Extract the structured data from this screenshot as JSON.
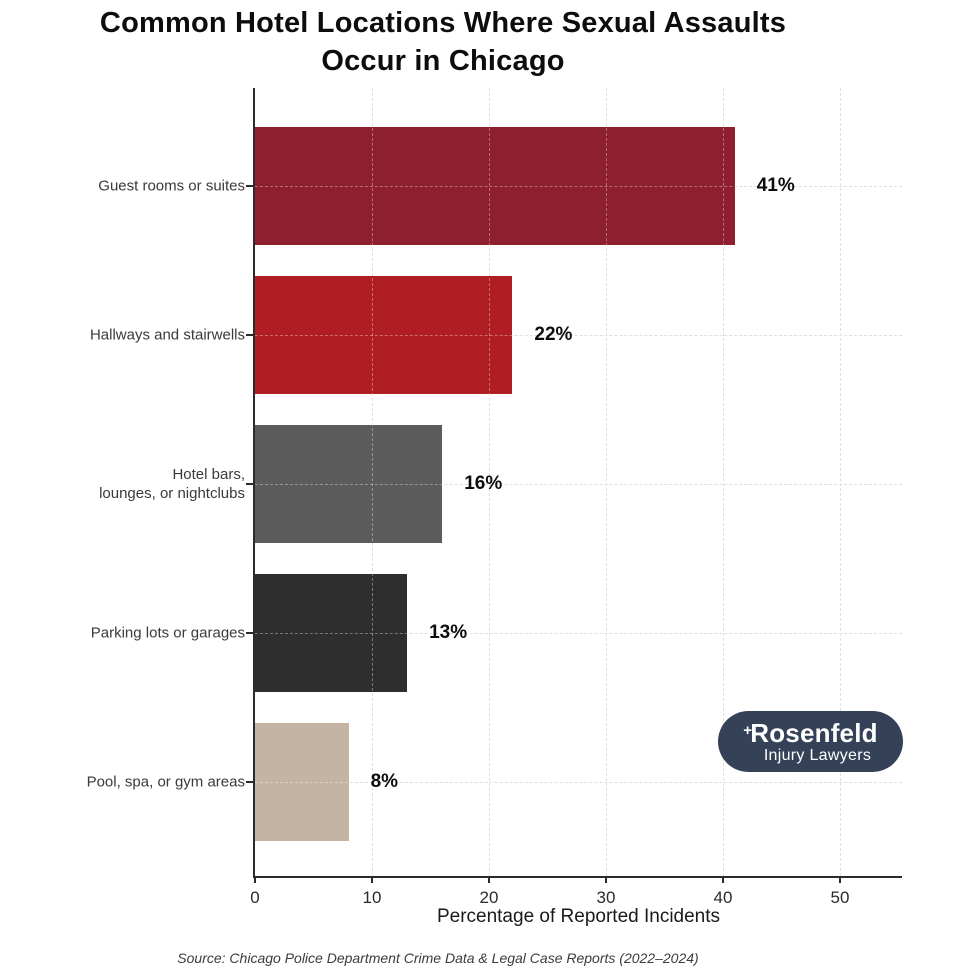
{
  "title": {
    "line1": "Common Hotel Locations Where Sexual Assaults",
    "line2": "Occur in Chicago"
  },
  "chart_data": {
    "type": "bar",
    "orientation": "horizontal",
    "title": "Common Hotel Locations Where Sexual Assaults Occur in Chicago",
    "categories": [
      "Guest rooms or suites",
      "Hallways and stairwells",
      "Hotel bars, lounges, or nightclubs",
      "Parking lots or garages",
      "Pool, spa, or gym areas"
    ],
    "category_lines": [
      [
        "Guest rooms or suites"
      ],
      [
        "Hallways and stairwells"
      ],
      [
        "Hotel bars,",
        "lounges, or nightclubs"
      ],
      [
        "Parking lots or garages"
      ],
      [
        "Pool, spa, or gym areas"
      ]
    ],
    "values": [
      41,
      22,
      16,
      13,
      8
    ],
    "value_labels": [
      "41%",
      "22%",
      "16%",
      "13%",
      "8%"
    ],
    "bar_colors": [
      "#8e1f2e",
      "#b01e23",
      "#5c5c5c",
      "#2e2e2e",
      "#c5b3a3"
    ],
    "xlabel": "Percentage of Reported Incidents",
    "x_ticks": [
      0,
      10,
      20,
      30,
      40,
      50
    ],
    "xlim": [
      0,
      55
    ],
    "grid": "dashed",
    "legend": "none"
  },
  "source_note": "Source: Chicago Police Department Crime Data & Legal Case Reports (2022–2024)",
  "logo": {
    "plus": "+",
    "name": "Rosenfeld",
    "tagline": "Injury Lawyers",
    "bg_color": "#344157",
    "text_color": "#ffffff"
  }
}
